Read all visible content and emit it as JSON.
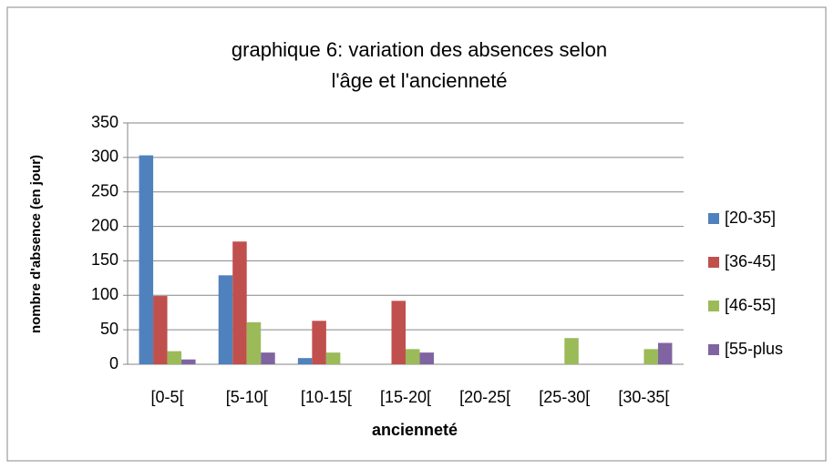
{
  "chart_data": {
    "type": "bar",
    "title": "graphique 6: variation des absences selon l'âge et l'ancienneté",
    "x_label": "ancienneté",
    "y_label": "nombre d'absence (en jour)",
    "categories": [
      "[0-5[",
      "[5-10[",
      "[10-15[",
      "[15-20[",
      "[20-25[",
      "[25-30[",
      "[30-35["
    ],
    "series": [
      {
        "name": "[20-35]",
        "color": "#4f81bd",
        "values": [
          303,
          129,
          9,
          0,
          0,
          0,
          0
        ]
      },
      {
        "name": "[36-45]",
        "color": "#c0504d",
        "values": [
          99,
          178,
          63,
          92,
          0,
          0,
          0
        ]
      },
      {
        "name": "[46-55]",
        "color": "#9bbb59",
        "values": [
          19,
          61,
          17,
          22,
          0,
          38,
          22
        ]
      },
      {
        "name": "[55-plus",
        "color": "#8064a2",
        "values": [
          7,
          17,
          0,
          17,
          0,
          0,
          31
        ]
      }
    ],
    "ylim": [
      0,
      350
    ],
    "yticks": [
      0,
      50,
      100,
      150,
      200,
      250,
      300,
      350
    ],
    "grid": true,
    "legend": "right"
  }
}
